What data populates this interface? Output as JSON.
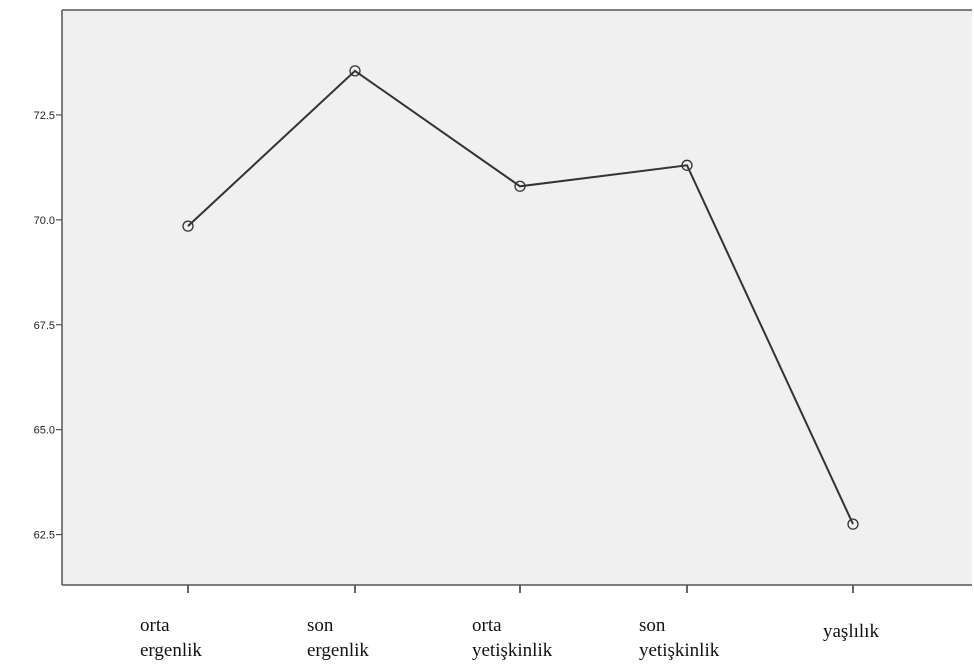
{
  "chart_data": {
    "type": "line",
    "title": "",
    "xlabel": "",
    "ylabel": "",
    "categories": [
      [
        "orta",
        "ergenlik"
      ],
      [
        "son",
        "ergenlik"
      ],
      [
        "orta",
        "yetişkinlik"
      ],
      [
        "son",
        "yetişkinlik"
      ],
      [
        "yaşlılık"
      ]
    ],
    "series": [
      {
        "values": [
          69.85,
          73.55,
          70.8,
          71.3,
          62.75
        ]
      }
    ],
    "yticks": [
      "62.5",
      "65.0",
      "67.5",
      "70.0",
      "72.5"
    ],
    "ylim": [
      61.3,
      75.0
    ],
    "grid": false,
    "legend": "none",
    "colors": {
      "plot_background": "#f0f0f0",
      "line": "#333333",
      "axis": "#000000"
    }
  }
}
